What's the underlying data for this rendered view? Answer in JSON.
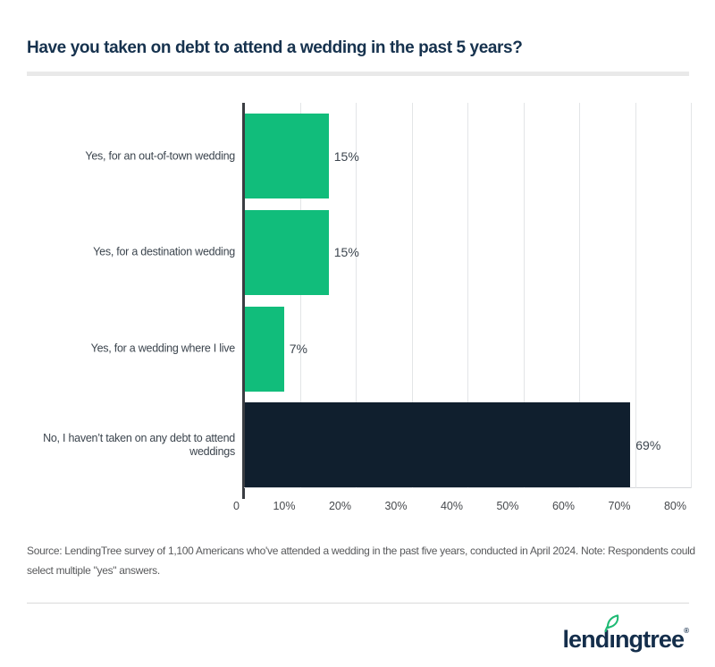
{
  "header": {
    "title": "Have you taken on debt to attend a wedding in the past 5 years?"
  },
  "chart_data": {
    "type": "bar",
    "orientation": "horizontal",
    "title": "Have you taken on debt to attend a wedding in the past 5 years?",
    "categories": [
      "Yes, for an out-of-town wedding",
      "Yes, for a destination wedding",
      "Yes, for a wedding where I live",
      "No, I haven’t taken on any debt to attend weddings"
    ],
    "values": [
      15,
      15,
      7,
      69
    ],
    "value_labels": [
      "15%",
      "15%",
      "7%",
      "69%"
    ],
    "bar_colors": [
      "#11bd7b",
      "#11bd7b",
      "#11bd7b",
      "#101f2e"
    ],
    "xlabel": "",
    "ylabel": "",
    "x_axis": {
      "min": 0,
      "max": 80,
      "ticks": [
        "0",
        "10%",
        "20%",
        "30%",
        "40%",
        "50%",
        "60%",
        "70%",
        "80%"
      ]
    },
    "grid": "vertical-gridlines-only",
    "legend": "none"
  },
  "footer": {
    "source_note": "Source: LendingTree survey of 1,100 Americans who've attended a wedding in the past five years, conducted in April 2024. Note: Respondents could select multiple \"yes\" answers."
  },
  "brand": {
    "logo_pre": "lend",
    "logo_i": "ı",
    "logo_post": "ngtree",
    "registered_mark": "®",
    "leaf_icon": "leaf-icon"
  },
  "colors": {
    "bar_green": "#11bd7b",
    "bar_navy": "#101f2e",
    "title_navy": "#16324e",
    "logo_navy": "#142e4b",
    "leaf_green": "#1fba74",
    "gridline": "#e3e5e7",
    "axis": "#3a3d42"
  }
}
